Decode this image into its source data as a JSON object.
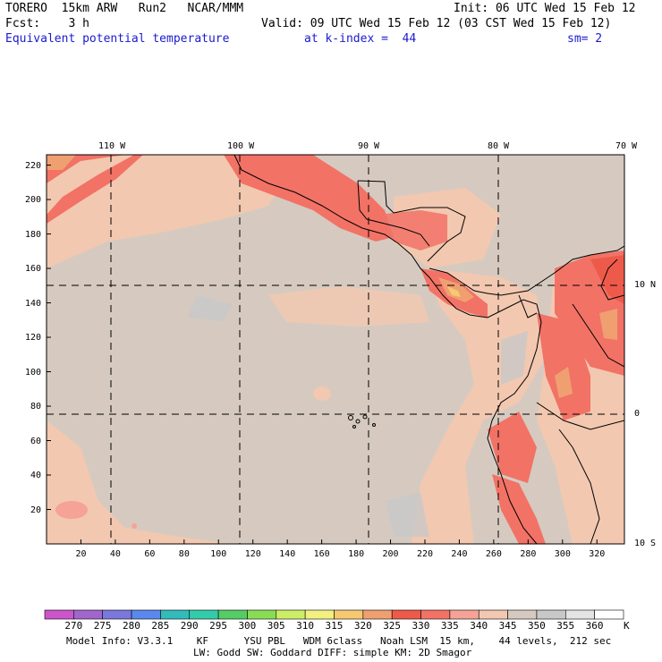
{
  "header": {
    "model": "TORERO  15km ARW   Run2   NCAR/MMM",
    "init": "Init: 06 UTC Wed 15 Feb 12",
    "fcst": "Fcst:    3 h",
    "valid": "Valid: 09 UTC Wed 15 Feb 12 (03 CST Wed 15 Feb 12)",
    "field": "Equivalent potential temperature",
    "level": "at k-index =  44",
    "smoothing": "sm= 2"
  },
  "map": {
    "lon_labels": [
      "110 W",
      "100 W",
      "90 W",
      "80 W",
      "70 W"
    ],
    "lat_labels": [
      "10 N",
      "0",
      "10 S"
    ],
    "x_ticks": [
      "20",
      "40",
      "60",
      "80",
      "100",
      "120",
      "140",
      "160",
      "180",
      "200",
      "220",
      "240",
      "260",
      "280",
      "300",
      "320"
    ],
    "y_ticks": [
      "20",
      "40",
      "60",
      "80",
      "100",
      "120",
      "140",
      "160",
      "180",
      "200",
      "220"
    ]
  },
  "colorbar": {
    "unit": "K",
    "labels": [
      "270",
      "275",
      "280",
      "285",
      "290",
      "295",
      "300",
      "305",
      "310",
      "315",
      "320",
      "325",
      "330",
      "335",
      "340",
      "345",
      "350",
      "355",
      "360"
    ],
    "colors": [
      "#cc55cc",
      "#a066cc",
      "#7a77dd",
      "#5a88ee",
      "#33bbbb",
      "#33ccaa",
      "#55cc66",
      "#88dd55",
      "#ccee66",
      "#f2f080",
      "#f6c870",
      "#f0a070",
      "#ee5a4a",
      "#f27266",
      "#f6a296",
      "#f2c8b0",
      "#d6cac0",
      "#c8c8c8",
      "#e4e4e4",
      "#ffffff"
    ]
  },
  "footer": {
    "line1": "Model Info: V3.3.1    KF      YSU PBL   WDM 6class   Noah LSM  15 km,    44 levels,  212 sec",
    "line2": "LW: Godd SW: Goddard DIFF: simple KM: 2D Smagor"
  }
}
